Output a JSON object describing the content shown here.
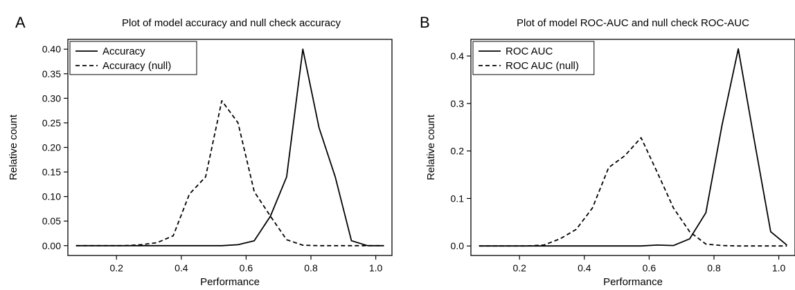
{
  "chart_data": [
    {
      "panel": "A",
      "type": "line",
      "title": "Plot of model accuracy and null check accuracy",
      "xlabel": "Performance",
      "ylabel": "Relative count",
      "xlim": [
        0.05,
        1.05
      ],
      "ylim": [
        -0.02,
        0.42
      ],
      "xticks": [
        0.2,
        0.4,
        0.6,
        0.8,
        1.0
      ],
      "xtick_labels": [
        "0.2",
        "0.4",
        "0.6",
        "0.8",
        "1.0"
      ],
      "yticks": [
        0.0,
        0.05,
        0.1,
        0.15,
        0.2,
        0.25,
        0.3,
        0.35,
        0.4
      ],
      "ytick_labels": [
        "0.00",
        "0.05",
        "0.10",
        "0.15",
        "0.20",
        "0.25",
        "0.30",
        "0.35",
        "0.40"
      ],
      "grid": false,
      "legend_position": "top-left",
      "series": [
        {
          "name": "Accuracy",
          "style": "solid",
          "x": [
            0.075,
            0.125,
            0.175,
            0.225,
            0.275,
            0.325,
            0.375,
            0.425,
            0.475,
            0.525,
            0.575,
            0.625,
            0.675,
            0.725,
            0.775,
            0.825,
            0.875,
            0.925,
            0.975,
            1.025
          ],
          "y": [
            0,
            0,
            0,
            0,
            0,
            0,
            0,
            0,
            0,
            0,
            0.002,
            0.01,
            0.06,
            0.14,
            0.4,
            0.24,
            0.14,
            0.01,
            0,
            0
          ]
        },
        {
          "name": "Accuracy (null)",
          "style": "dashed",
          "x": [
            0.075,
            0.125,
            0.175,
            0.225,
            0.275,
            0.325,
            0.375,
            0.425,
            0.475,
            0.525,
            0.575,
            0.625,
            0.675,
            0.725,
            0.775,
            0.825,
            0.875,
            0.925,
            0.975,
            1.025
          ],
          "y": [
            0,
            0,
            0,
            0,
            0.002,
            0.006,
            0.02,
            0.105,
            0.14,
            0.295,
            0.25,
            0.11,
            0.06,
            0.012,
            0.001,
            0,
            0,
            0,
            0,
            0
          ]
        }
      ]
    },
    {
      "panel": "B",
      "type": "line",
      "title": "Plot of model ROC-AUC and null check ROC-AUC",
      "xlabel": "Performance",
      "ylabel": "Relative count",
      "xlim": [
        0.05,
        1.05
      ],
      "ylim": [
        -0.02,
        0.435
      ],
      "xticks": [
        0.2,
        0.4,
        0.6,
        0.8,
        1.0
      ],
      "xtick_labels": [
        "0.2",
        "0.4",
        "0.6",
        "0.8",
        "1.0"
      ],
      "yticks": [
        0.0,
        0.1,
        0.2,
        0.3,
        0.4
      ],
      "ytick_labels": [
        "0.0",
        "0.1",
        "0.2",
        "0.3",
        "0.4"
      ],
      "grid": false,
      "legend_position": "top-left",
      "series": [
        {
          "name": "ROC AUC",
          "style": "solid",
          "x": [
            0.075,
            0.125,
            0.175,
            0.225,
            0.275,
            0.325,
            0.375,
            0.425,
            0.475,
            0.525,
            0.575,
            0.625,
            0.675,
            0.725,
            0.775,
            0.825,
            0.875,
            0.925,
            0.975,
            1.025
          ],
          "y": [
            0,
            0,
            0,
            0,
            0,
            0,
            0,
            0,
            0,
            0,
            0,
            0.002,
            0.001,
            0.015,
            0.07,
            0.255,
            0.415,
            0.22,
            0.03,
            0.002
          ]
        },
        {
          "name": "ROC AUC (null)",
          "style": "dashed",
          "x": [
            0.075,
            0.125,
            0.175,
            0.225,
            0.275,
            0.325,
            0.375,
            0.425,
            0.475,
            0.525,
            0.575,
            0.625,
            0.675,
            0.725,
            0.775,
            0.825,
            0.875,
            0.925,
            0.975,
            1.025
          ],
          "y": [
            0,
            0,
            0,
            0,
            0.002,
            0.015,
            0.035,
            0.08,
            0.165,
            0.19,
            0.228,
            0.155,
            0.08,
            0.03,
            0.004,
            0.001,
            0,
            0,
            0,
            0
          ]
        }
      ]
    }
  ]
}
